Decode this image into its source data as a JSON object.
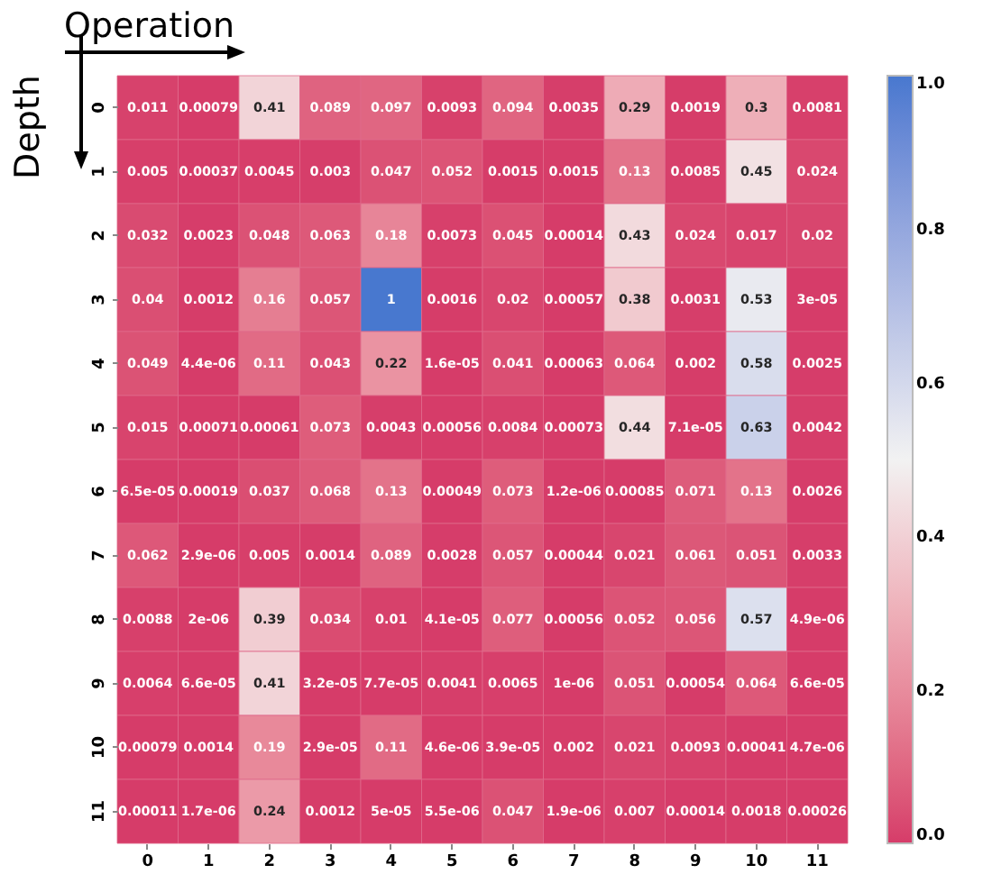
{
  "chart_data": {
    "type": "heatmap",
    "xlabel": "Operation",
    "ylabel": "Depth",
    "categories": [
      "0",
      "1",
      "2",
      "3",
      "4",
      "5",
      "6",
      "7",
      "8",
      "9",
      "10",
      "11"
    ],
    "y_categories": [
      "0",
      "1",
      "2",
      "3",
      "4",
      "5",
      "6",
      "7",
      "8",
      "9",
      "10",
      "11"
    ],
    "cells": [
      [
        0.011,
        0.00079,
        0.41,
        0.089,
        0.097,
        0.0093,
        0.094,
        0.0035,
        0.29,
        0.0019,
        0.3,
        0.0081
      ],
      [
        0.005,
        0.00037,
        0.0045,
        0.003,
        0.047,
        0.052,
        0.0015,
        0.0015,
        0.13,
        0.0085,
        0.45,
        0.024
      ],
      [
        0.032,
        0.0023,
        0.048,
        0.063,
        0.18,
        0.0073,
        0.045,
        0.00014,
        0.43,
        0.024,
        0.017,
        0.02
      ],
      [
        0.04,
        0.0012,
        0.16,
        0.057,
        1,
        0.0016,
        0.02,
        0.00057,
        0.38,
        0.0031,
        0.53,
        3e-05
      ],
      [
        0.049,
        4.4e-06,
        0.11,
        0.043,
        0.22,
        1.6e-05,
        0.041,
        0.00063,
        0.064,
        0.002,
        0.58,
        0.0025
      ],
      [
        0.015,
        0.00071,
        0.00061,
        0.073,
        0.0043,
        0.00056,
        0.0084,
        0.00073,
        0.44,
        7.1e-05,
        0.63,
        0.0042
      ],
      [
        6.5e-05,
        0.00019,
        0.037,
        0.068,
        0.13,
        0.00049,
        0.073,
        1.2e-06,
        0.00085,
        0.071,
        0.13,
        0.0026
      ],
      [
        0.062,
        2.9e-06,
        0.005,
        0.0014,
        0.089,
        0.0028,
        0.057,
        0.00044,
        0.021,
        0.061,
        0.051,
        0.0033
      ],
      [
        0.0088,
        2e-06,
        0.39,
        0.034,
        0.01,
        4.1e-05,
        0.077,
        0.00056,
        0.052,
        0.056,
        0.57,
        4.9e-06
      ],
      [
        0.0064,
        6.6e-05,
        0.41,
        3.2e-05,
        7.7e-05,
        0.0041,
        0.0065,
        1e-06,
        0.051,
        0.00054,
        0.064,
        6.6e-05
      ],
      [
        0.00079,
        0.0014,
        0.19,
        2.9e-05,
        0.11,
        4.6e-06,
        3.9e-05,
        0.002,
        0.021,
        0.0093,
        0.00041,
        4.7e-06
      ],
      [
        0.00011,
        1.7e-06,
        0.24,
        0.0012,
        5e-05,
        5.5e-06,
        0.047,
        1.9e-06,
        0.007,
        0.00014,
        0.0018,
        0.00026
      ]
    ],
    "cell_labels": [
      [
        "0.011",
        "0.00079",
        "0.41",
        "0.089",
        "0.097",
        "0.0093",
        "0.094",
        "0.0035",
        "0.29",
        "0.0019",
        "0.3",
        "0.0081"
      ],
      [
        "0.005",
        "0.00037",
        "0.0045",
        "0.003",
        "0.047",
        "0.052",
        "0.0015",
        "0.0015",
        "0.13",
        "0.0085",
        "0.45",
        "0.024"
      ],
      [
        "0.032",
        "0.0023",
        "0.048",
        "0.063",
        "0.18",
        "0.0073",
        "0.045",
        "0.00014",
        "0.43",
        "0.024",
        "0.017",
        "0.02"
      ],
      [
        "0.04",
        "0.0012",
        "0.16",
        "0.057",
        "1",
        "0.0016",
        "0.02",
        "0.00057",
        "0.38",
        "0.0031",
        "0.53",
        "3e-05"
      ],
      [
        "0.049",
        "4.4e-06",
        "0.11",
        "0.043",
        "0.22",
        "1.6e-05",
        "0.041",
        "0.00063",
        "0.064",
        "0.002",
        "0.58",
        "0.0025"
      ],
      [
        "0.015",
        "0.00071",
        "0.00061",
        "0.073",
        "0.0043",
        "0.00056",
        "0.0084",
        "0.00073",
        "0.44",
        "7.1e-05",
        "0.63",
        "0.0042"
      ],
      [
        "6.5e-05",
        "0.00019",
        "0.037",
        "0.068",
        "0.13",
        "0.00049",
        "0.073",
        "1.2e-06",
        "0.00085",
        "0.071",
        "0.13",
        "0.0026"
      ],
      [
        "0.062",
        "2.9e-06",
        "0.005",
        "0.0014",
        "0.089",
        "0.0028",
        "0.057",
        "0.00044",
        "0.021",
        "0.061",
        "0.051",
        "0.0033"
      ],
      [
        "0.0088",
        "2e-06",
        "0.39",
        "0.034",
        "0.01",
        "4.1e-05",
        "0.077",
        "0.00056",
        "0.052",
        "0.056",
        "0.57",
        "4.9e-06"
      ],
      [
        "0.0064",
        "6.6e-05",
        "0.41",
        "3.2e-05",
        "7.7e-05",
        "0.0041",
        "0.0065",
        "1e-06",
        "0.051",
        "0.00054",
        "0.064",
        "6.6e-05"
      ],
      [
        "0.00079",
        "0.0014",
        "0.19",
        "2.9e-05",
        "0.11",
        "4.6e-06",
        "3.9e-05",
        "0.002",
        "0.021",
        "0.0093",
        "0.00041",
        "4.7e-06"
      ],
      [
        "0.00011",
        "1.7e-06",
        "0.24",
        "0.0012",
        "5e-05",
        "5.5e-06",
        "0.047",
        "1.9e-06",
        "0.007",
        "0.00014",
        "0.0018",
        "0.00026"
      ]
    ],
    "clim": [
      0,
      1
    ],
    "cticks": [
      {
        "value": 0,
        "label": "0.0"
      },
      {
        "value": 0.2,
        "label": "0.2"
      },
      {
        "value": 0.4,
        "label": "0.4"
      },
      {
        "value": 0.6,
        "label": "0.6"
      },
      {
        "value": 0.8,
        "label": "0.8"
      },
      {
        "value": 1,
        "label": "1.0"
      }
    ]
  }
}
